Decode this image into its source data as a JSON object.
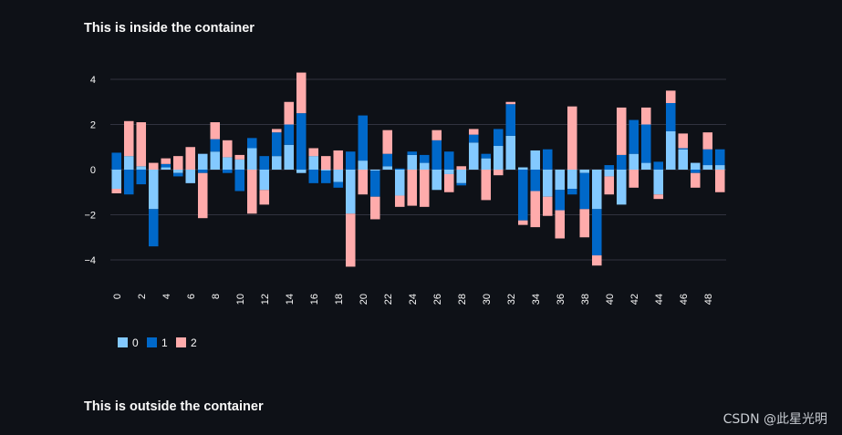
{
  "headings": {
    "inside": "This is inside the container",
    "outside": "This is outside the container"
  },
  "watermark": "CSDN @此星光明",
  "colors": {
    "s0": "#83c9ff",
    "s1": "#0068c9",
    "s2": "#ffabab",
    "grid": "#31333f",
    "tick": "#fafafa"
  },
  "chart_data": {
    "type": "bar",
    "stacked": true,
    "title": "",
    "xlabel": "",
    "ylabel": "",
    "ylim": [
      -5.3,
      5.3
    ],
    "yticks": [
      -4,
      -2,
      0,
      2,
      4
    ],
    "ytick_labels": [
      "−4",
      "−2",
      "0",
      "2",
      "4"
    ],
    "grid": true,
    "legend_position": "bottom-left",
    "categories": [
      0,
      1,
      2,
      3,
      4,
      5,
      6,
      7,
      8,
      9,
      10,
      11,
      12,
      13,
      14,
      15,
      16,
      17,
      18,
      19,
      20,
      21,
      22,
      23,
      24,
      25,
      26,
      27,
      28,
      29,
      30,
      31,
      32,
      33,
      34,
      35,
      36,
      37,
      38,
      39,
      40,
      41,
      42,
      43,
      44,
      45,
      46,
      47,
      48,
      49
    ],
    "xtick_labels": [
      "0",
      "2",
      "4",
      "6",
      "8",
      "10",
      "12",
      "14",
      "16",
      "18",
      "20",
      "22",
      "24",
      "26",
      "28",
      "30",
      "32",
      "34",
      "36",
      "38",
      "40",
      "42",
      "44",
      "46",
      "48"
    ],
    "series": [
      {
        "name": "0",
        "values": [
          -0.85,
          0.6,
          0.15,
          -1.75,
          0.1,
          -0.15,
          -0.6,
          0.7,
          0.8,
          0.55,
          0.45,
          0.95,
          -0.9,
          0.6,
          1.1,
          -0.15,
          0.6,
          -0.05,
          -0.55,
          -1.95,
          0.4,
          -0.05,
          0.15,
          -1.15,
          0.65,
          0.3,
          -0.9,
          -0.2,
          -0.6,
          1.2,
          0.5,
          1.05,
          1.5,
          0.1,
          0.85,
          -1.2,
          -0.9,
          -0.85,
          -0.15,
          -1.75,
          -0.3,
          -1.55,
          0.7,
          0.3,
          -1.1,
          1.7,
          0.9,
          0.3,
          0.2,
          0.2
        ]
      },
      {
        "name": "1",
        "values": [
          0.75,
          -1.1,
          -0.65,
          -1.65,
          0.15,
          -0.15,
          0,
          -0.15,
          0.55,
          -0.15,
          -0.95,
          0.45,
          0.6,
          1.05,
          0.9,
          2.5,
          -0.6,
          -0.55,
          -0.25,
          0.8,
          2.0,
          -1.15,
          0.55,
          0.05,
          0.15,
          0.35,
          1.3,
          0.8,
          -0.1,
          0.35,
          0.2,
          0.75,
          1.4,
          -2.25,
          -0.95,
          0.9,
          -0.9,
          -0.25,
          -1.6,
          -2.05,
          0.2,
          0.65,
          1.5,
          1.7,
          0.35,
          1.25,
          0.05,
          -0.15,
          0.7,
          0.7
        ]
      },
      {
        "name": "2",
        "values": [
          -0.2,
          1.55,
          1.95,
          0.3,
          0.25,
          0.6,
          1.0,
          -2.0,
          0.75,
          0.75,
          0.2,
          -1.95,
          -0.65,
          0.15,
          1.0,
          1.8,
          0.35,
          0.6,
          0.85,
          -2.35,
          -1.1,
          -1.0,
          1.05,
          -0.5,
          -1.6,
          -1.65,
          0.45,
          -0.8,
          0.15,
          0.25,
          -1.35,
          -0.25,
          0.1,
          -0.2,
          -1.6,
          -0.85,
          -1.25,
          2.8,
          -1.25,
          -0.45,
          -0.8,
          2.1,
          -0.8,
          0.75,
          -0.2,
          0.55,
          0.65,
          -0.65,
          0.75,
          -1.0
        ]
      }
    ],
    "legend": [
      "0",
      "1",
      "2"
    ]
  }
}
